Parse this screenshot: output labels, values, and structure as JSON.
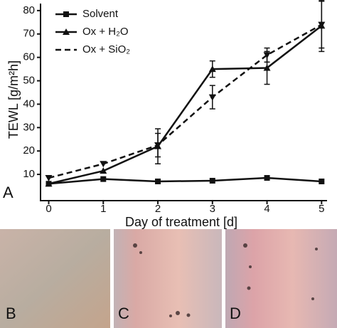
{
  "chart_data": {
    "type": "line",
    "y_label": "TEWL [g/m²h]",
    "x_label": "Day of treatment [d]",
    "x": [
      0,
      1,
      2,
      3,
      4,
      5
    ],
    "xlim": [
      -0.15,
      5.1
    ],
    "xticks": [
      0,
      1,
      2,
      3,
      4,
      5
    ],
    "ylim": [
      0,
      83
    ],
    "yticks": [
      10,
      20,
      30,
      40,
      50,
      60,
      70,
      80
    ],
    "legend": "upper left",
    "series": [
      {
        "name": "Solvent",
        "color": "#111111",
        "marker": "square",
        "dash": false,
        "values": [
          6,
          8,
          7,
          7.3,
          8.5,
          7
        ],
        "errors": [
          null,
          null,
          null,
          null,
          null,
          null
        ]
      },
      {
        "name": "Ox + H₂O",
        "color": "#111111",
        "marker": "triangle-up",
        "dash": false,
        "values": [
          6,
          11.5,
          22,
          55,
          55.5,
          73.5
        ],
        "errors": [
          null,
          null,
          7.5,
          3.5,
          7,
          11
        ]
      },
      {
        "name": "Ox + SiO₂",
        "color": "#111111",
        "marker": "triangle-down",
        "dash": true,
        "values": [
          8.5,
          14.5,
          22.5,
          43,
          61,
          74
        ],
        "errors": [
          null,
          null,
          5,
          5,
          3,
          10
        ]
      }
    ],
    "panel_labels": [
      "A",
      "B",
      "C",
      "D"
    ]
  }
}
